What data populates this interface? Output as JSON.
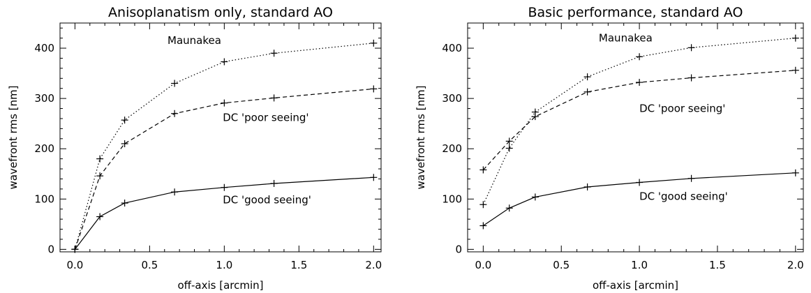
{
  "chart_data": [
    {
      "type": "line",
      "title": "Anisoplanatism only, standard AO",
      "xlabel": "off-axis [arcmin]",
      "ylabel": "wavefront rms [nm]",
      "xlim": [
        -0.1,
        2.05
      ],
      "ylim": [
        -5,
        450
      ],
      "xticks": [
        "0.0",
        "0.5",
        "1.0",
        "1.5",
        "2.0"
      ],
      "xtick_values": [
        0,
        0.5,
        1,
        1.5,
        2
      ],
      "yticks": [
        "0",
        "100",
        "200",
        "300",
        "400"
      ],
      "ytick_values": [
        0,
        100,
        200,
        300,
        400
      ],
      "grid": false,
      "legend": "none",
      "x": [
        0,
        0.167,
        0.333,
        0.667,
        1.0,
        1.333,
        2.0
      ],
      "series": [
        {
          "name": "Maunakea",
          "style": "dotted",
          "values": [
            0,
            180,
            257,
            330,
            373,
            390,
            410
          ],
          "label_x": 0.62,
          "label_y": 415
        },
        {
          "name": "DC 'poor seeing'",
          "style": "dashed",
          "values": [
            0,
            146,
            210,
            270,
            291,
            301,
            319
          ],
          "label_x": 0.99,
          "label_y": 262
        },
        {
          "name": "DC 'good seeing'",
          "style": "solid",
          "values": [
            0,
            65,
            92,
            114,
            123,
            131,
            143
          ],
          "label_x": 0.99,
          "label_y": 98
        }
      ]
    },
    {
      "type": "line",
      "title": "Basic performance, standard AO",
      "xlabel": "off-axis [arcmin]",
      "ylabel": "wavefront rms [nm]",
      "xlim": [
        -0.1,
        2.05
      ],
      "ylim": [
        -5,
        450
      ],
      "xticks": [
        "0.0",
        "0.5",
        "1.0",
        "1.5",
        "2.0"
      ],
      "xtick_values": [
        0,
        0.5,
        1,
        1.5,
        2
      ],
      "yticks": [
        "0",
        "100",
        "200",
        "300",
        "400"
      ],
      "ytick_values": [
        0,
        100,
        200,
        300,
        400
      ],
      "grid": false,
      "legend": "none",
      "x": [
        0,
        0.167,
        0.333,
        0.667,
        1.0,
        1.333,
        2.0
      ],
      "series": [
        {
          "name": "Maunakea",
          "style": "dotted",
          "values": [
            89,
            201,
            273,
            343,
            383,
            401,
            420
          ],
          "label_x": 0.74,
          "label_y": 420
        },
        {
          "name": "DC 'poor seeing'",
          "style": "dashed",
          "values": [
            158,
            215,
            264,
            313,
            332,
            341,
            356
          ],
          "label_x": 1.0,
          "label_y": 280
        },
        {
          "name": "DC 'good seeing'",
          "style": "solid",
          "values": [
            47,
            82,
            104,
            124,
            133,
            141,
            152
          ],
          "label_x": 1.0,
          "label_y": 105
        }
      ]
    }
  ]
}
